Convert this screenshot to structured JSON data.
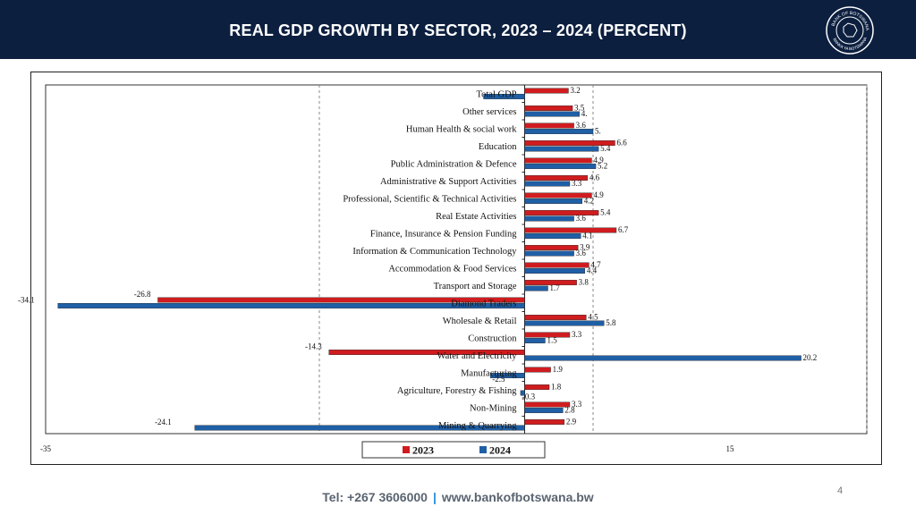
{
  "header": {
    "title": "REAL GDP GROWTH BY SECTOR, 2023 – 2024 (PERCENT)",
    "seal_text_top": "BANK OF BOTSWANA",
    "seal_text_bottom": "BANKA YA BOTSWANA"
  },
  "footer": {
    "tel": "Tel: +267 3606000",
    "separator": "|",
    "website": "www.bankofbotswana.bw",
    "page_number": "4"
  },
  "colors": {
    "header_bg": "#0c1f3f",
    "series_2023": "#d01c1f",
    "series_2024": "#1f5fa6"
  },
  "chart_data": {
    "type": "bar",
    "orientation": "horizontal",
    "title": "REAL GDP GROWTH BY SECTOR, 2023 – 2024 (PERCENT)",
    "xlim": [
      -35,
      25
    ],
    "x_tick_labels": [
      {
        "value": -35,
        "label": "-35"
      },
      {
        "value": 15,
        "label": "15"
      }
    ],
    "gridlines_at": [
      -15,
      5,
      25
    ],
    "legend_position": "bottom-center",
    "categories": [
      "Total GDP",
      "Other services",
      "Human Health & social work",
      "Education",
      "Public Administration & Defence",
      "Administrative & Support Activities",
      "Professional, Scientific & Technical Activities",
      "Real Estate Activities",
      "Finance, Insurance & Pension Funding",
      "Information & Communication Technology",
      "Accommodation & Food Services",
      "Transport and Storage",
      "Diamond Traders",
      "Wholesale & Retail",
      "Construction",
      "Water and Electricity",
      "Manufacturing",
      "Agriculture, Forestry & Fishing",
      "Non-Mining",
      "Mining & Quarrying"
    ],
    "series": [
      {
        "name": "2023",
        "color": "#d01c1f",
        "values": [
          3.2,
          3.5,
          3.6,
          6.6,
          4.9,
          4.6,
          4.9,
          5.4,
          6.7,
          3.9,
          4.7,
          3.8,
          -26.8,
          4.5,
          3.3,
          -14.3,
          1.9,
          1.8,
          3.3,
          2.9
        ],
        "labels": [
          "3.2",
          "3.5",
          "3.6",
          "6.6",
          "4.9",
          "4.6",
          "4.9",
          "5.4",
          "6.7",
          "3.9",
          "4.7",
          "3.8",
          "-26.8",
          "4.5",
          "3.3",
          "-14.3",
          "1.9",
          "1.8",
          "3.3",
          "2.9"
        ]
      },
      {
        "name": "2024",
        "color": "#1f5fa6",
        "values": [
          -3.0,
          4.0,
          5.0,
          5.4,
          5.2,
          3.3,
          4.2,
          3.6,
          4.1,
          3.6,
          4.4,
          1.7,
          -34.1,
          5.8,
          1.5,
          20.2,
          -2.5,
          -0.3,
          2.8,
          -24.1
        ],
        "labels": [
          "",
          "4.",
          "5.",
          "5.4",
          "5.2",
          "3.3",
          "4.2",
          "3.6",
          "4.1",
          "3.6",
          "4.4",
          "1.7",
          "-34.1",
          "5.8",
          "1.5",
          "20.2",
          "-2.5",
          "-0.3",
          "2.8",
          "-24.1"
        ]
      }
    ]
  }
}
